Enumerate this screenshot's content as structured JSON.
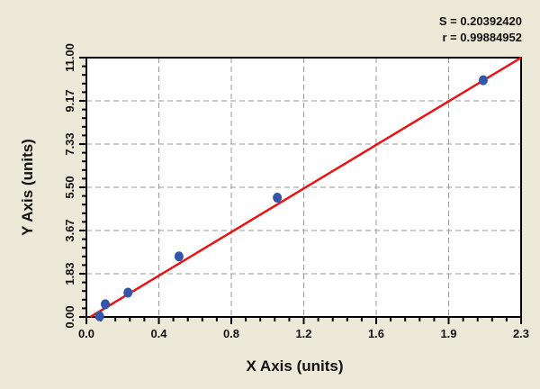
{
  "stats": {
    "s_label": "S = 0.20392420",
    "r_label": "r = 0.99884952"
  },
  "chart_data": {
    "type": "scatter",
    "title": "",
    "xlabel": "X Axis (units)",
    "ylabel": "Y Axis (units)",
    "xlim": [
      0,
      2.3
    ],
    "ylim": [
      0,
      11
    ],
    "x_ticks": [
      "0.0",
      "0.4",
      "0.8",
      "1.2",
      "1.6",
      "1.9",
      "2.3"
    ],
    "y_ticks": [
      "0.00",
      "1.83",
      "3.67",
      "5.50",
      "7.33",
      "9.17",
      "11.00"
    ],
    "grid": true,
    "points": [
      {
        "x": 0.07,
        "y": 0.03
      },
      {
        "x": 0.1,
        "y": 0.54
      },
      {
        "x": 0.22,
        "y": 1.03
      },
      {
        "x": 0.49,
        "y": 2.57
      },
      {
        "x": 1.01,
        "y": 5.06
      },
      {
        "x": 2.1,
        "y": 10.04
      }
    ],
    "fit_line": {
      "slope": 4.825,
      "intercept": -0.1
    },
    "colors": {
      "points": "#3355aa",
      "fit_line": "#ee1111",
      "background": "#ece9d8",
      "plot_bg": "#ffffff"
    }
  }
}
